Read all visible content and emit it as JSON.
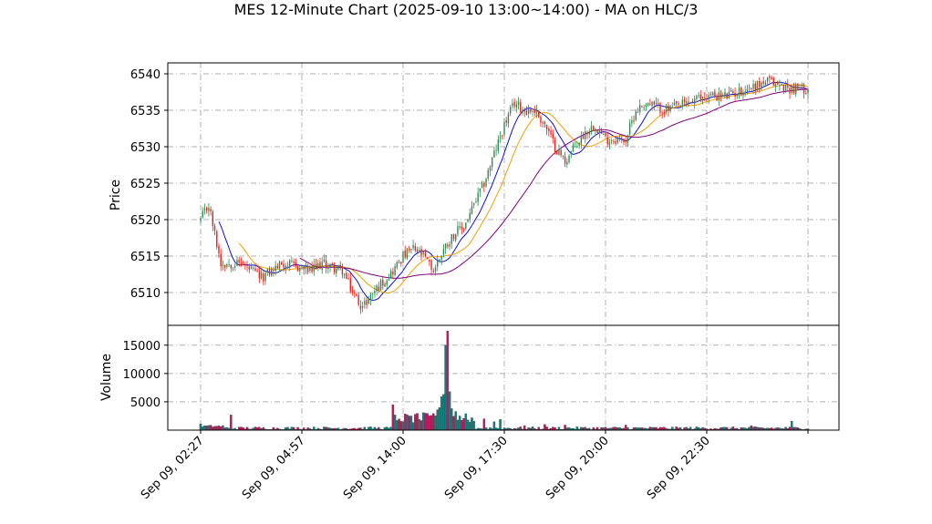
{
  "chart_data": {
    "type": "candlestick",
    "title": "MES 12-Minute Chart (2025-09-10 13:00~14:00) - MA on HLC/3",
    "price_panel": {
      "ylabel": "Price",
      "ylim": [
        6505.5,
        6541.5
      ],
      "yticks": [
        6510,
        6515,
        6520,
        6525,
        6530,
        6535,
        6540
      ],
      "grid": true
    },
    "volume_panel": {
      "ylabel": "Volume",
      "ylim": [
        0,
        18500
      ],
      "yticks": [
        5000,
        10000,
        15000
      ],
      "grid": true
    },
    "x_tick_labels": [
      "Sep 09, 02:27",
      "Sep 09, 04:57",
      "Sep 09, 14:00",
      "Sep 09, 17:30",
      "Sep 09, 20:00",
      "Sep 09, 22:30",
      ""
    ],
    "bar_count": 301,
    "colors": {
      "up": "#2e8b57",
      "down": "#e8231f",
      "volume_up": "#0f7f7f",
      "volume_down": "#c2185b",
      "ma_fast": "#1010cc",
      "ma_mid": "#f0a000",
      "ma_slow": "#800080"
    },
    "close_anchors": [
      [
        0,
        6520
      ],
      [
        4,
        6522
      ],
      [
        7,
        6518
      ],
      [
        10,
        6514
      ],
      [
        20,
        6514
      ],
      [
        30,
        6512
      ],
      [
        40,
        6514
      ],
      [
        55,
        6513
      ],
      [
        60,
        6514
      ],
      [
        70,
        6513
      ],
      [
        75,
        6510
      ],
      [
        80,
        6508
      ],
      [
        85,
        6510
      ],
      [
        95,
        6513
      ],
      [
        100,
        6515
      ],
      [
        105,
        6516
      ],
      [
        110,
        6515
      ],
      [
        115,
        6513
      ],
      [
        120,
        6516
      ],
      [
        125,
        6518
      ],
      [
        130,
        6519
      ],
      [
        135,
        6522
      ],
      [
        140,
        6525
      ],
      [
        145,
        6529
      ],
      [
        150,
        6533
      ],
      [
        155,
        6536
      ],
      [
        160,
        6535
      ],
      [
        165,
        6535
      ],
      [
        170,
        6533
      ],
      [
        175,
        6530
      ],
      [
        180,
        6528
      ],
      [
        185,
        6530
      ],
      [
        190,
        6532
      ],
      [
        195,
        6533
      ],
      [
        200,
        6531
      ],
      [
        205,
        6531
      ],
      [
        210,
        6531
      ],
      [
        215,
        6535
      ],
      [
        220,
        6536
      ],
      [
        230,
        6535
      ],
      [
        240,
        6536
      ],
      [
        250,
        6537
      ],
      [
        260,
        6537
      ],
      [
        270,
        6538
      ],
      [
        280,
        6539
      ],
      [
        290,
        6538
      ],
      [
        300,
        6538
      ]
    ],
    "volume_spikes": [
      [
        0,
        1100
      ],
      [
        15,
        2700
      ],
      [
        95,
        4500
      ],
      [
        97,
        1700
      ],
      [
        104,
        2500
      ],
      [
        106,
        2800
      ],
      [
        110,
        3100
      ],
      [
        114,
        2600
      ],
      [
        117,
        3600
      ],
      [
        118,
        4000
      ],
      [
        119,
        5900
      ],
      [
        120,
        6300
      ],
      [
        121,
        15000
      ],
      [
        122,
        17500
      ],
      [
        123,
        6800
      ],
      [
        124,
        3800
      ],
      [
        126,
        3300
      ],
      [
        128,
        2500
      ],
      [
        130,
        2100
      ],
      [
        132,
        1800
      ],
      [
        135,
        1600
      ],
      [
        140,
        2000
      ],
      [
        145,
        1500
      ],
      [
        148,
        1900
      ],
      [
        160,
        800
      ],
      [
        170,
        1000
      ],
      [
        180,
        900
      ],
      [
        210,
        900
      ],
      [
        272,
        800
      ],
      [
        292,
        1600
      ]
    ]
  }
}
